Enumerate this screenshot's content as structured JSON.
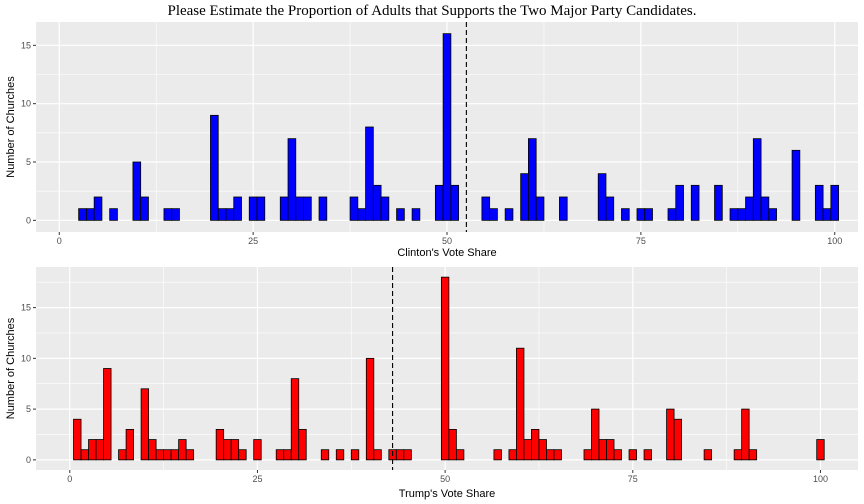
{
  "title": "Please Estimate the Proportion of Adults that Supports the Two Major Party Candidates.",
  "chart_data": [
    {
      "type": "bar",
      "xlabel": "Clinton's Vote Share",
      "ylabel": "Number of Churches",
      "xlim": [
        -3,
        103
      ],
      "ylim": [
        -1,
        17
      ],
      "xticks": [
        0,
        25,
        50,
        75,
        100
      ],
      "yticks": [
        0,
        5,
        10,
        15
      ],
      "grid": true,
      "bar_color": "#0000ff",
      "mean_line": 52.5,
      "x": [
        3,
        4,
        5,
        7,
        10,
        11,
        14,
        15,
        20,
        21,
        22,
        23,
        25,
        26,
        29,
        30,
        31,
        32,
        34,
        38,
        39,
        40,
        41,
        42,
        44,
        46,
        49,
        50,
        51,
        55,
        56,
        58,
        60,
        61,
        62,
        65,
        70,
        71,
        73,
        75,
        76,
        79,
        80,
        82,
        85,
        87,
        88,
        89,
        90,
        91,
        92,
        95,
        98,
        99,
        100
      ],
      "values": [
        1,
        1,
        2,
        1,
        5,
        2,
        1,
        1,
        9,
        1,
        1,
        2,
        2,
        2,
        2,
        7,
        2,
        2,
        2,
        2,
        1,
        8,
        3,
        2,
        1,
        1,
        3,
        16,
        3,
        2,
        1,
        1,
        4,
        7,
        2,
        2,
        4,
        2,
        1,
        1,
        1,
        1,
        3,
        3,
        3,
        1,
        1,
        2,
        7,
        2,
        1,
        6,
        3,
        1,
        3
      ]
    },
    {
      "type": "bar",
      "xlabel": "Trump's Vote Share",
      "ylabel": "Number of Churches",
      "xlim": [
        -4.5,
        105
      ],
      "ylim": [
        -1,
        19
      ],
      "xticks": [
        0,
        25,
        50,
        75,
        100
      ],
      "yticks": [
        0,
        5,
        10,
        15
      ],
      "grid": true,
      "bar_color": "#ff0000",
      "mean_line": 43,
      "x": [
        1,
        2,
        3,
        4,
        5,
        7,
        8,
        10,
        11,
        12,
        13,
        14,
        15,
        16,
        20,
        21,
        22,
        23,
        25,
        28,
        29,
        30,
        31,
        34,
        36,
        38,
        40,
        41,
        43,
        44,
        45,
        50,
        51,
        52,
        57,
        59,
        60,
        61,
        62,
        63,
        64,
        65,
        69,
        70,
        71,
        72,
        73,
        75,
        77,
        80,
        81,
        85,
        89,
        90,
        91,
        100
      ],
      "values": [
        4,
        1,
        2,
        2,
        9,
        1,
        3,
        7,
        2,
        1,
        1,
        1,
        2,
        1,
        3,
        2,
        2,
        1,
        2,
        1,
        1,
        8,
        3,
        1,
        1,
        1,
        10,
        1,
        1,
        1,
        1,
        18,
        3,
        1,
        1,
        1,
        11,
        2,
        3,
        2,
        1,
        1,
        1,
        5,
        2,
        2,
        1,
        1,
        1,
        5,
        4,
        1,
        1,
        5,
        1,
        2
      ]
    }
  ]
}
